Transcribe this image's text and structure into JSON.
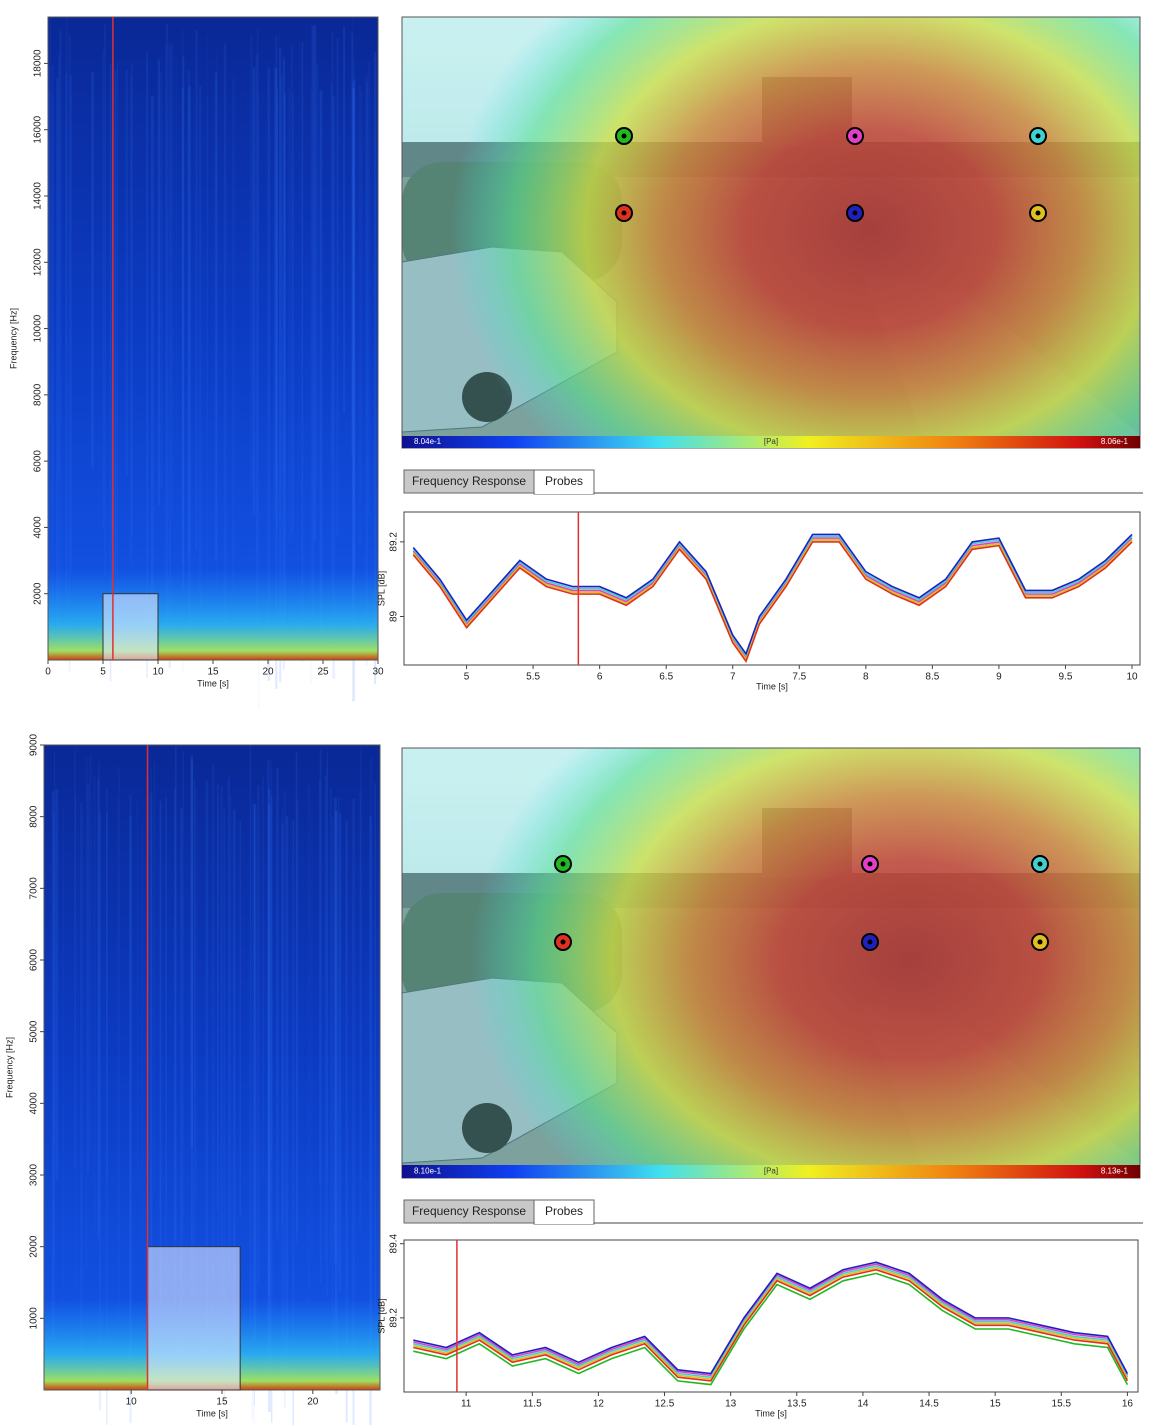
{
  "panels": [
    {
      "spectrogram": {
        "type": "heatmap",
        "x_label": "Time [s]",
        "y_label": "Frequency [Hz]",
        "xlim": [
          0,
          30
        ],
        "xticks": [
          0,
          5,
          10,
          15,
          20,
          25,
          30
        ],
        "ylim": [
          0,
          19400
        ],
        "yticks": [
          2000,
          4000,
          6000,
          8000,
          10000,
          12000,
          14000,
          16000,
          18000
        ],
        "cursor": 5.9,
        "selection": {
          "x": [
            5,
            10
          ],
          "y": [
            0,
            2000
          ]
        }
      },
      "camera": {
        "colorbar_min": "8.04e-1",
        "colorbar_unit": "[Pa]",
        "colorbar_max": "8.06e-1"
      },
      "tabs": [
        "Frequency Response",
        "Probes"
      ],
      "probes": {
        "type": "line",
        "x_label": "Time [s]",
        "y_label": "SPL [dB]",
        "xlim": [
          4.53,
          10.06
        ],
        "xticks": [
          5,
          5.5,
          6,
          6.5,
          7,
          7.5,
          8,
          8.5,
          9,
          9.5,
          10
        ],
        "ylim": [
          88.87,
          89.28
        ],
        "yticks": [
          89,
          89.2
        ],
        "cursor": 5.84,
        "x": [
          4.6,
          4.8,
          5,
          5.2,
          5.4,
          5.6,
          5.8,
          6,
          6.2,
          6.4,
          6.6,
          6.8,
          7,
          7.1,
          7.2,
          7.4,
          7.6,
          7.8,
          8,
          8.2,
          8.4,
          8.6,
          8.8,
          9,
          9.2,
          9.4,
          9.6,
          9.8,
          10
        ],
        "series": [
          {
            "color": "#22b822",
            "values": [
              89.17,
              89.085,
              88.975,
              89.055,
              89.135,
              89.085,
              89.065,
              89.065,
              89.035,
              89.085,
              89.185,
              89.105,
              88.935,
              88.885,
              88.985,
              89.085,
              89.205,
              89.205,
              89.105,
              89.065,
              89.035,
              89.085,
              89.185,
              89.195,
              89.055,
              89.055,
              89.085,
              89.135,
              89.205
            ]
          },
          {
            "color": "#e040c8",
            "values": [
              89.175,
              89.09,
              88.98,
              89.06,
              89.14,
              89.09,
              89.07,
              89.07,
              89.04,
              89.09,
              89.19,
              89.11,
              88.94,
              88.89,
              88.99,
              89.09,
              89.21,
              89.21,
              89.11,
              89.07,
              89.04,
              89.09,
              89.19,
              89.2,
              89.06,
              89.06,
              89.09,
              89.14,
              89.21
            ]
          },
          {
            "color": "#40d0d0",
            "values": [
              89.18,
              89.095,
              88.985,
              89.065,
              89.145,
              89.095,
              89.075,
              89.075,
              89.045,
              89.095,
              89.195,
              89.115,
              88.945,
              88.895,
              88.995,
              89.095,
              89.215,
              89.215,
              89.115,
              89.075,
              89.045,
              89.095,
              89.195,
              89.205,
              89.065,
              89.065,
              89.095,
              89.145,
              89.215
            ]
          },
          {
            "color": "#e0c020",
            "values": [
              89.17,
              89.085,
              88.975,
              89.055,
              89.135,
              89.085,
              89.065,
              89.065,
              89.035,
              89.085,
              89.185,
              89.105,
              88.935,
              88.885,
              88.985,
              89.085,
              89.205,
              89.205,
              89.105,
              89.065,
              89.035,
              89.085,
              89.185,
              89.195,
              89.055,
              89.055,
              89.085,
              89.135,
              89.205
            ]
          },
          {
            "color": "#e03020",
            "values": [
              89.165,
              89.08,
              88.97,
              89.05,
              89.13,
              89.08,
              89.06,
              89.06,
              89.03,
              89.08,
              89.18,
              89.1,
              88.93,
              88.88,
              88.98,
              89.08,
              89.2,
              89.2,
              89.1,
              89.06,
              89.03,
              89.08,
              89.18,
              89.19,
              89.05,
              89.05,
              89.08,
              89.13,
              89.2
            ]
          },
          {
            "color": "#2020c0",
            "values": [
              89.185,
              89.1,
              88.99,
              89.07,
              89.15,
              89.1,
              89.08,
              89.08,
              89.05,
              89.1,
              89.2,
              89.12,
              88.95,
              88.9,
              89,
              89.1,
              89.22,
              89.22,
              89.12,
              89.08,
              89.05,
              89.1,
              89.2,
              89.21,
              89.07,
              89.07,
              89.1,
              89.15,
              89.22
            ]
          }
        ]
      }
    },
    {
      "spectrogram": {
        "type": "heatmap",
        "x_label": "Time [s]",
        "y_label": "Frequency [Hz]",
        "xlim": [
          5.2,
          23.7
        ],
        "xticks": [
          10,
          15,
          20
        ],
        "ylim": [
          0,
          9000
        ],
        "yticks": [
          1000,
          2000,
          3000,
          4000,
          5000,
          6000,
          7000,
          8000,
          9000
        ],
        "cursor": 10.9,
        "selection": {
          "x": [
            10.9,
            16
          ],
          "y": [
            0,
            2000
          ]
        }
      },
      "camera": {
        "colorbar_min": "8.10e-1",
        "colorbar_unit": "[Pa]",
        "colorbar_max": "8.13e-1"
      },
      "tabs": [
        "Frequency Response",
        "Probes"
      ],
      "probes": {
        "type": "line",
        "x_label": "Time [s]",
        "y_label": "SPL [dB]",
        "xlim": [
          10.53,
          16.08
        ],
        "xticks": [
          11,
          11.5,
          12,
          12.5,
          13,
          13.5,
          14,
          14.5,
          15,
          15.5,
          16
        ],
        "ylim": [
          89.0,
          89.41
        ],
        "yticks": [
          89.2,
          89.4
        ],
        "cursor": 10.93,
        "x": [
          10.6,
          10.85,
          11.1,
          11.35,
          11.6,
          11.85,
          12.1,
          12.35,
          12.6,
          12.85,
          13.1,
          13.35,
          13.6,
          13.85,
          14.1,
          14.35,
          14.6,
          14.85,
          15.1,
          15.35,
          15.6,
          15.85,
          16
        ],
        "series": [
          {
            "color": "#22b822",
            "values": [
              89.11,
              89.09,
              89.13,
              89.07,
              89.09,
              89.05,
              89.09,
              89.12,
              89.03,
              89.02,
              89.17,
              89.29,
              89.25,
              89.3,
              89.32,
              89.29,
              89.22,
              89.17,
              89.17,
              89.15,
              89.13,
              89.12,
              89.02
            ]
          },
          {
            "color": "#e040c8",
            "values": [
              89.135,
              89.115,
              89.155,
              89.095,
              89.115,
              89.075,
              89.115,
              89.145,
              89.055,
              89.045,
              89.195,
              89.315,
              89.275,
              89.325,
              89.345,
              89.315,
              89.245,
              89.195,
              89.195,
              89.175,
              89.155,
              89.145,
              89.045
            ]
          },
          {
            "color": "#40d0d0",
            "values": [
              89.13,
              89.11,
              89.15,
              89.09,
              89.11,
              89.07,
              89.11,
              89.14,
              89.05,
              89.04,
              89.19,
              89.31,
              89.27,
              89.32,
              89.34,
              89.31,
              89.24,
              89.19,
              89.19,
              89.17,
              89.15,
              89.14,
              89.04
            ]
          },
          {
            "color": "#e0c020",
            "values": [
              89.125,
              89.105,
              89.145,
              89.085,
              89.105,
              89.065,
              89.105,
              89.135,
              89.045,
              89.035,
              89.185,
              89.305,
              89.265,
              89.315,
              89.335,
              89.305,
              89.235,
              89.185,
              89.185,
              89.165,
              89.145,
              89.135,
              89.035
            ]
          },
          {
            "color": "#e03020",
            "values": [
              89.12,
              89.1,
              89.14,
              89.08,
              89.1,
              89.06,
              89.1,
              89.13,
              89.04,
              89.03,
              89.18,
              89.3,
              89.26,
              89.31,
              89.33,
              89.3,
              89.23,
              89.18,
              89.18,
              89.16,
              89.14,
              89.13,
              89.03
            ]
          },
          {
            "color": "#2020c0",
            "values": [
              89.14,
              89.12,
              89.16,
              89.1,
              89.12,
              89.08,
              89.12,
              89.15,
              89.06,
              89.05,
              89.2,
              89.32,
              89.28,
              89.33,
              89.35,
              89.32,
              89.25,
              89.2,
              89.2,
              89.18,
              89.16,
              89.15,
              89.05
            ]
          }
        ]
      }
    }
  ]
}
